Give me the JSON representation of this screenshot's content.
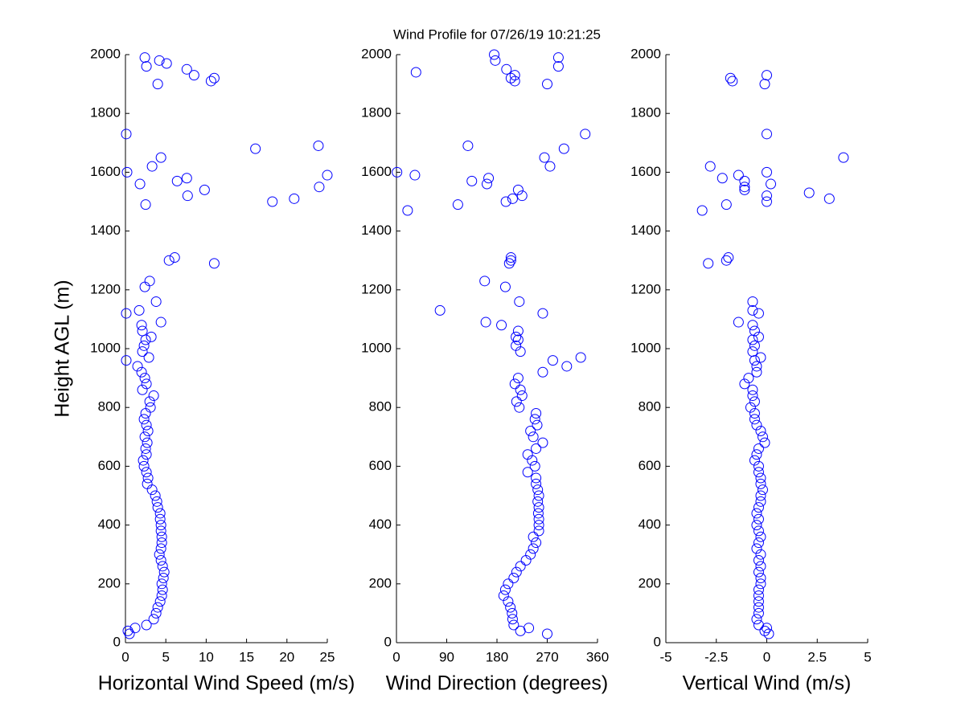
{
  "title": "Wind Profile for  07/26/19 10:21:25",
  "chart_data": [
    {
      "type": "scatter",
      "xlabel": "Horizontal Wind Speed (m/s)",
      "ylabel": "Height AGL (m)",
      "color": "#0000ff",
      "xlim": [
        0,
        25
      ],
      "xticks": [
        0,
        5,
        10,
        15,
        20,
        25
      ],
      "ylim": [
        0,
        2000
      ],
      "yticks": [
        0,
        200,
        400,
        600,
        800,
        1000,
        1200,
        1400,
        1600,
        1800,
        2000
      ],
      "x": [
        0.5,
        0.3,
        1.2,
        2.6,
        3.5,
        3.8,
        4.0,
        4.3,
        4.5,
        4.6,
        4.5,
        4.7,
        4.8,
        4.6,
        4.4,
        4.2,
        4.4,
        4.5,
        4.5,
        4.4,
        4.4,
        4.3,
        4.3,
        4.0,
        3.9,
        3.7,
        3.3,
        2.7,
        2.8,
        2.6,
        2.3,
        2.2,
        2.6,
        2.5,
        2.7,
        2.4,
        2.8,
        2.6,
        2.3,
        2.5,
        3.1,
        3.0,
        3.5,
        2.1,
        2.6,
        2.4,
        2.0,
        1.5,
        0.1,
        2.9,
        2.1,
        2.3,
        2.5,
        3.2,
        2.1,
        2.0,
        4.4,
        0.1,
        1.7,
        3.8,
        2.4,
        3.0,
        11.0,
        5.4,
        6.1,
        2.5,
        18.2,
        20.9,
        7.7,
        9.8,
        24.0,
        1.8,
        6.4,
        7.6,
        25.0,
        0.2,
        3.3,
        4.4,
        16.1,
        23.9,
        0.1,
        4.0,
        10.6,
        11.0,
        8.5,
        7.6,
        2.6,
        5.1,
        4.2,
        2.4
      ],
      "values": [
        30,
        40,
        50,
        60,
        80,
        100,
        120,
        140,
        160,
        180,
        200,
        220,
        240,
        260,
        280,
        300,
        320,
        340,
        360,
        380,
        400,
        420,
        440,
        460,
        480,
        500,
        520,
        540,
        560,
        580,
        600,
        620,
        640,
        660,
        680,
        700,
        720,
        740,
        760,
        780,
        800,
        820,
        840,
        860,
        880,
        900,
        920,
        940,
        960,
        970,
        990,
        1010,
        1030,
        1040,
        1060,
        1080,
        1090,
        1120,
        1130,
        1160,
        1210,
        1230,
        1290,
        1300,
        1310,
        1490,
        1500,
        1510,
        1520,
        1540,
        1550,
        1560,
        1570,
        1580,
        1590,
        1600,
        1620,
        1650,
        1680,
        1690,
        1730,
        1900,
        1910,
        1920,
        1930,
        1950,
        1960,
        1970,
        1980,
        1990
      ]
    },
    {
      "type": "scatter",
      "xlabel": "Wind Direction (degrees)",
      "color": "#0000ff",
      "xlim": [
        0,
        360
      ],
      "xticks": [
        0,
        90,
        180,
        270,
        360
      ],
      "ylim": [
        0,
        2000
      ],
      "yticks": [
        0,
        200,
        400,
        600,
        800,
        1000,
        1200,
        1400,
        1600,
        1800,
        2000
      ],
      "x": [
        270,
        222,
        237,
        210,
        208,
        207,
        204,
        200,
        192,
        195,
        200,
        210,
        215,
        222,
        232,
        240,
        245,
        250,
        245,
        255,
        255,
        255,
        254,
        255,
        253,
        255,
        253,
        250,
        250,
        235,
        248,
        243,
        235,
        250,
        262,
        245,
        240,
        252,
        248,
        250,
        220,
        215,
        225,
        222,
        212,
        218,
        262,
        305,
        280,
        330,
        222,
        214,
        218,
        214,
        218,
        188,
        160,
        262,
        78,
        220,
        195,
        158,
        202,
        205,
        205,
        20,
        110,
        196,
        208,
        225,
        218,
        162,
        135,
        165,
        33,
        1,
        275,
        265,
        300,
        128,
        338,
        270,
        212,
        205,
        212,
        35,
        197,
        290,
        177,
        290,
        175
      ],
      "values": [
        30,
        40,
        50,
        60,
        80,
        100,
        120,
        140,
        160,
        180,
        200,
        220,
        240,
        260,
        280,
        300,
        320,
        340,
        360,
        380,
        400,
        420,
        440,
        460,
        480,
        500,
        520,
        540,
        560,
        580,
        600,
        620,
        640,
        660,
        680,
        700,
        720,
        740,
        760,
        780,
        800,
        820,
        840,
        860,
        880,
        900,
        920,
        940,
        960,
        970,
        990,
        1010,
        1030,
        1040,
        1060,
        1080,
        1090,
        1120,
        1130,
        1160,
        1210,
        1230,
        1290,
        1300,
        1310,
        1470,
        1490,
        1500,
        1510,
        1520,
        1540,
        1560,
        1570,
        1580,
        1590,
        1600,
        1620,
        1650,
        1680,
        1690,
        1730,
        1900,
        1910,
        1920,
        1930,
        1940,
        1950,
        1960,
        1980,
        1990,
        2000
      ]
    },
    {
      "type": "scatter",
      "xlabel": "Vertical Wind (m/s)",
      "color": "#0000ff",
      "xlim": [
        -5,
        5
      ],
      "xticks": [
        -5,
        -2.5,
        0,
        2.5,
        5
      ],
      "ylim": [
        0,
        2000
      ],
      "yticks": [
        0,
        200,
        400,
        600,
        800,
        1000,
        1200,
        1400,
        1600,
        1800,
        2000
      ],
      "x": [
        0.1,
        -0.1,
        0.0,
        -0.4,
        -0.5,
        -0.4,
        -0.4,
        -0.4,
        -0.4,
        -0.4,
        -0.3,
        -0.3,
        -0.4,
        -0.3,
        -0.4,
        -0.3,
        -0.5,
        -0.4,
        -0.3,
        -0.4,
        -0.5,
        -0.4,
        -0.5,
        -0.4,
        -0.3,
        -0.3,
        -0.2,
        -0.3,
        -0.3,
        -0.4,
        -0.4,
        -0.6,
        -0.5,
        -0.4,
        -0.1,
        -0.2,
        -0.3,
        -0.5,
        -0.6,
        -0.6,
        -0.8,
        -0.6,
        -0.7,
        -0.7,
        -1.1,
        -0.9,
        -0.5,
        -0.5,
        -0.6,
        -0.3,
        -0.7,
        -0.6,
        -0.7,
        -0.4,
        -0.6,
        -0.7,
        -1.4,
        -0.4,
        -0.7,
        -0.7,
        -2.9,
        -2.0,
        -1.9,
        -3.2,
        -2.0,
        0.0,
        3.1,
        0.0,
        2.1,
        -1.1,
        -1.1,
        0.2,
        -1.1,
        -2.2,
        -1.4,
        0.0,
        -2.8,
        3.8,
        0.0,
        -0.1,
        -1.7,
        -1.8,
        0.0
      ],
      "values": [
        30,
        40,
        50,
        60,
        80,
        100,
        120,
        140,
        160,
        180,
        200,
        220,
        240,
        260,
        280,
        300,
        320,
        340,
        360,
        380,
        400,
        420,
        440,
        460,
        480,
        500,
        520,
        540,
        560,
        580,
        600,
        620,
        640,
        660,
        680,
        700,
        720,
        740,
        760,
        780,
        800,
        820,
        840,
        860,
        880,
        900,
        920,
        940,
        960,
        970,
        990,
        1010,
        1030,
        1040,
        1060,
        1080,
        1090,
        1120,
        1130,
        1160,
        1290,
        1300,
        1310,
        1470,
        1490,
        1500,
        1510,
        1520,
        1530,
        1540,
        1550,
        1560,
        1570,
        1580,
        1590,
        1600,
        1620,
        1650,
        1730,
        1900,
        1910,
        1920,
        1930
      ]
    }
  ]
}
